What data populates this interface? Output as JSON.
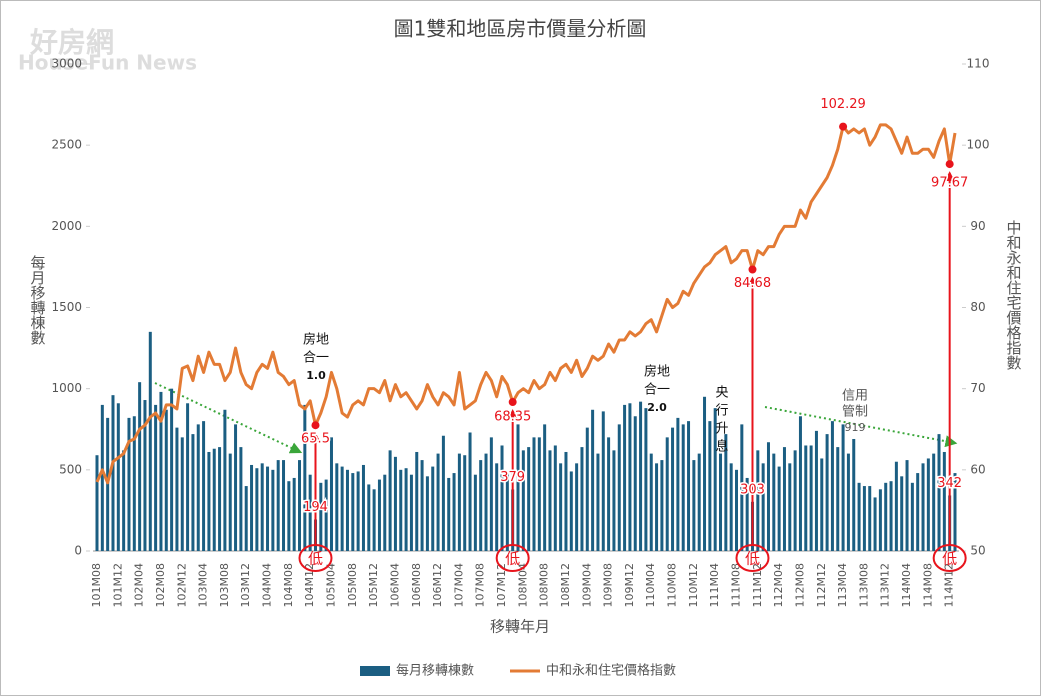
{
  "chart_data": {
    "type": "bar_line",
    "title": "圖1雙和地區房市價量分析圖",
    "x_label": "移轉年月",
    "ylabel": "每月移轉棟數",
    "y2label": "中和永和住宅價格指數",
    "legend": "bottom",
    "grid": false,
    "watermark": [
      "好房網",
      "HouseFun News"
    ],
    "ylim": [
      0,
      3000
    ],
    "yticks": [
      0,
      500,
      1000,
      1500,
      2000,
      2500,
      3000
    ],
    "y2lim": [
      50,
      110
    ],
    "y2ticks": [
      50,
      60,
      70,
      80,
      90,
      100,
      110
    ],
    "categories": [
      "101M08",
      null,
      null,
      null,
      "101M12",
      null,
      null,
      null,
      "102M04",
      null,
      null,
      null,
      "102M08",
      null,
      null,
      null,
      "102M12",
      null,
      null,
      null,
      "103M04",
      null,
      null,
      null,
      "103M08",
      null,
      null,
      null,
      "103M12",
      null,
      null,
      null,
      "104M04",
      null,
      null,
      null,
      "104M08",
      null,
      null,
      null,
      "104M12",
      null,
      null,
      null,
      "105M04",
      null,
      null,
      null,
      "105M08",
      null,
      null,
      null,
      "105M12",
      null,
      null,
      null,
      "106M04",
      null,
      null,
      null,
      "106M08",
      null,
      null,
      null,
      "106M12",
      null,
      null,
      null,
      "107M04",
      null,
      null,
      null,
      "107M08",
      null,
      null,
      null,
      "107M12",
      null,
      null,
      null,
      "108M04",
      null,
      null,
      null,
      "108M08",
      null,
      null,
      null,
      "108M12",
      null,
      null,
      null,
      "109M04",
      null,
      null,
      null,
      "109M08",
      null,
      null,
      null,
      "109M12",
      null,
      null,
      null,
      "110M04",
      null,
      null,
      null,
      "110M08",
      null,
      null,
      null,
      "110M12",
      null,
      null,
      null,
      "111M04",
      null,
      null,
      null,
      "111M08",
      null,
      null,
      null,
      "111M12",
      null,
      null,
      null,
      "112M04",
      null,
      null,
      null,
      "112M08",
      null,
      null,
      null,
      "112M12",
      null,
      null,
      null,
      "113M04",
      null,
      null,
      null,
      "113M08",
      null,
      null,
      null,
      "113M12",
      null,
      null,
      null,
      "114M04",
      null,
      null,
      null,
      "114M08",
      null,
      null,
      null,
      "114M12",
      null
    ],
    "series": [
      {
        "name": "每月移轉棟數",
        "type": "bar",
        "axis": "y",
        "color": "#1b5e82",
        "values": [
          590,
          900,
          820,
          960,
          910,
          620,
          820,
          830,
          1040,
          930,
          1350,
          900,
          980,
          870,
          1000,
          760,
          700,
          910,
          720,
          780,
          800,
          610,
          630,
          640,
          870,
          600,
          780,
          640,
          400,
          530,
          510,
          540,
          520,
          500,
          560,
          560,
          430,
          450,
          560,
          900,
          470,
          194,
          420,
          440,
          700,
          540,
          520,
          500,
          480,
          490,
          530,
          410,
          380,
          440,
          470,
          620,
          580,
          500,
          510,
          470,
          610,
          560,
          460,
          520,
          600,
          710,
          450,
          480,
          600,
          590,
          730,
          470,
          560,
          600,
          700,
          540,
          650,
          480,
          379,
          780,
          620,
          640,
          700,
          700,
          780,
          620,
          650,
          540,
          610,
          490,
          540,
          640,
          760,
          870,
          600,
          860,
          700,
          620,
          780,
          900,
          910,
          830,
          920,
          880,
          600,
          540,
          560,
          700,
          760,
          820,
          780,
          800,
          560,
          600,
          950,
          800,
          880,
          600,
          720,
          540,
          500,
          780,
          450,
          303,
          620,
          540,
          670,
          600,
          520,
          640,
          540,
          620,
          830,
          650,
          650,
          740,
          570,
          720,
          800,
          640,
          780,
          600,
          690,
          420,
          400,
          400,
          330,
          380,
          420,
          430,
          550,
          460,
          560,
          420,
          480,
          540,
          570,
          600,
          720,
          610,
          342,
          480
        ],
        "value_labels": [
          null,
          null,
          null,
          null,
          null,
          null,
          null,
          null,
          null,
          null,
          null,
          null,
          null,
          null,
          null,
          null,
          null,
          null,
          null,
          null,
          null,
          null,
          null,
          null,
          null,
          null,
          null,
          null,
          null,
          null,
          null,
          null,
          null,
          null,
          null,
          null,
          null,
          null,
          null,
          null,
          null,
          "194",
          null,
          null,
          null,
          null,
          null,
          null,
          null,
          null,
          null,
          null,
          null,
          null,
          null,
          null,
          null,
          null,
          null,
          null,
          null,
          null,
          null,
          null,
          null,
          null,
          null,
          null,
          null,
          null,
          null,
          null,
          null,
          null,
          null,
          null,
          null,
          null,
          "379",
          null,
          null,
          null,
          null,
          null,
          null,
          null,
          null,
          null,
          null,
          null,
          null,
          null,
          null,
          null,
          null,
          null,
          null,
          null,
          null,
          null,
          null,
          null,
          null,
          null,
          null,
          null,
          null,
          null,
          null,
          null,
          null,
          null,
          null,
          null,
          null,
          null,
          null,
          null,
          null,
          null,
          null,
          null,
          null,
          "303",
          null,
          null,
          null,
          null,
          null,
          null,
          null,
          null,
          null,
          null,
          null,
          null,
          null,
          null,
          null,
          null,
          null,
          null,
          null,
          null,
          null,
          null,
          null,
          null,
          null,
          null,
          null,
          null,
          null,
          null,
          null,
          null,
          null,
          null,
          null,
          null,
          "342",
          null
        ]
      },
      {
        "name": "中和永和住宅價格指數",
        "type": "line",
        "axis": "y2",
        "color": "#e37b35",
        "values": [
          58.5,
          60,
          58.4,
          61,
          61.5,
          62,
          63.5,
          63.8,
          65,
          65.5,
          66.5,
          67,
          66,
          68,
          68,
          67.5,
          72.5,
          72.8,
          71,
          74,
          72,
          74.5,
          73,
          73,
          71,
          72,
          75,
          72,
          70.5,
          70,
          72,
          73,
          72.5,
          74.5,
          72,
          71.5,
          70.5,
          71,
          68,
          67.5,
          68.5,
          65.5,
          67,
          69,
          72,
          70,
          67,
          66.5,
          68,
          68.5,
          68,
          70,
          70,
          69.5,
          71,
          68.5,
          70.5,
          69,
          69.5,
          68.5,
          67.5,
          68.5,
          70.5,
          69,
          68,
          69.5,
          69,
          68,
          72,
          67.5,
          68,
          68.5,
          70.5,
          72,
          71,
          69,
          71.5,
          70.5,
          68.35,
          69.5,
          70,
          69.5,
          71,
          70,
          70.5,
          72,
          71,
          72.5,
          73,
          72,
          73.5,
          71.5,
          72.5,
          74,
          73.5,
          74,
          75.5,
          74.5,
          76,
          76,
          77,
          76.5,
          77,
          78,
          78.5,
          77,
          79,
          81,
          80,
          80.5,
          82,
          81.5,
          83,
          84,
          85,
          85.5,
          86.5,
          87,
          87.5,
          85.5,
          86,
          87,
          87,
          84.68,
          87,
          86.5,
          87.5,
          87.5,
          89,
          90,
          90,
          90,
          92,
          91,
          93,
          94,
          95,
          96,
          97.5,
          99.5,
          102.29,
          101.5,
          102,
          101.5,
          102,
          100,
          101,
          102.5,
          102.5,
          102,
          100.5,
          99,
          101,
          99,
          99,
          99.5,
          99.5,
          98.5,
          100.5,
          102,
          97.67,
          101.5
        ],
        "value_labels": [
          null,
          null,
          null,
          null,
          null,
          null,
          null,
          null,
          null,
          null,
          null,
          null,
          null,
          null,
          null,
          null,
          null,
          null,
          null,
          null,
          null,
          null,
          null,
          null,
          null,
          null,
          null,
          null,
          null,
          null,
          null,
          null,
          null,
          null,
          null,
          null,
          null,
          null,
          null,
          null,
          null,
          "65.5",
          null,
          null,
          null,
          null,
          null,
          null,
          null,
          null,
          null,
          null,
          null,
          null,
          null,
          null,
          null,
          null,
          null,
          null,
          null,
          null,
          null,
          null,
          null,
          null,
          null,
          null,
          null,
          null,
          null,
          null,
          null,
          null,
          null,
          null,
          null,
          null,
          "68.35",
          null,
          null,
          null,
          null,
          null,
          null,
          null,
          null,
          null,
          null,
          null,
          null,
          null,
          null,
          null,
          null,
          null,
          null,
          null,
          null,
          null,
          null,
          null,
          null,
          null,
          null,
          null,
          null,
          null,
          null,
          null,
          null,
          null,
          null,
          null,
          null,
          null,
          null,
          null,
          null,
          null,
          null,
          null,
          null,
          "84.68",
          null,
          null,
          null,
          null,
          null,
          null,
          null,
          null,
          null,
          null,
          null,
          null,
          null,
          null,
          null,
          null,
          "102.29",
          null,
          null,
          null,
          null,
          null,
          null,
          null,
          null,
          null,
          null,
          null,
          null,
          null,
          null,
          null,
          null,
          null,
          null,
          null,
          "97.67",
          null
        ]
      }
    ],
    "annotations": [
      [
        "房地",
        "合一",
        "1.0"
      ],
      [
        "房地",
        "合一",
        "2.0"
      ],
      [
        "央",
        "行",
        "升",
        "息"
      ],
      [
        "信用",
        "管制",
        "919"
      ]
    ],
    "low_markers": [
      "低",
      "低",
      "低",
      "低"
    ]
  }
}
